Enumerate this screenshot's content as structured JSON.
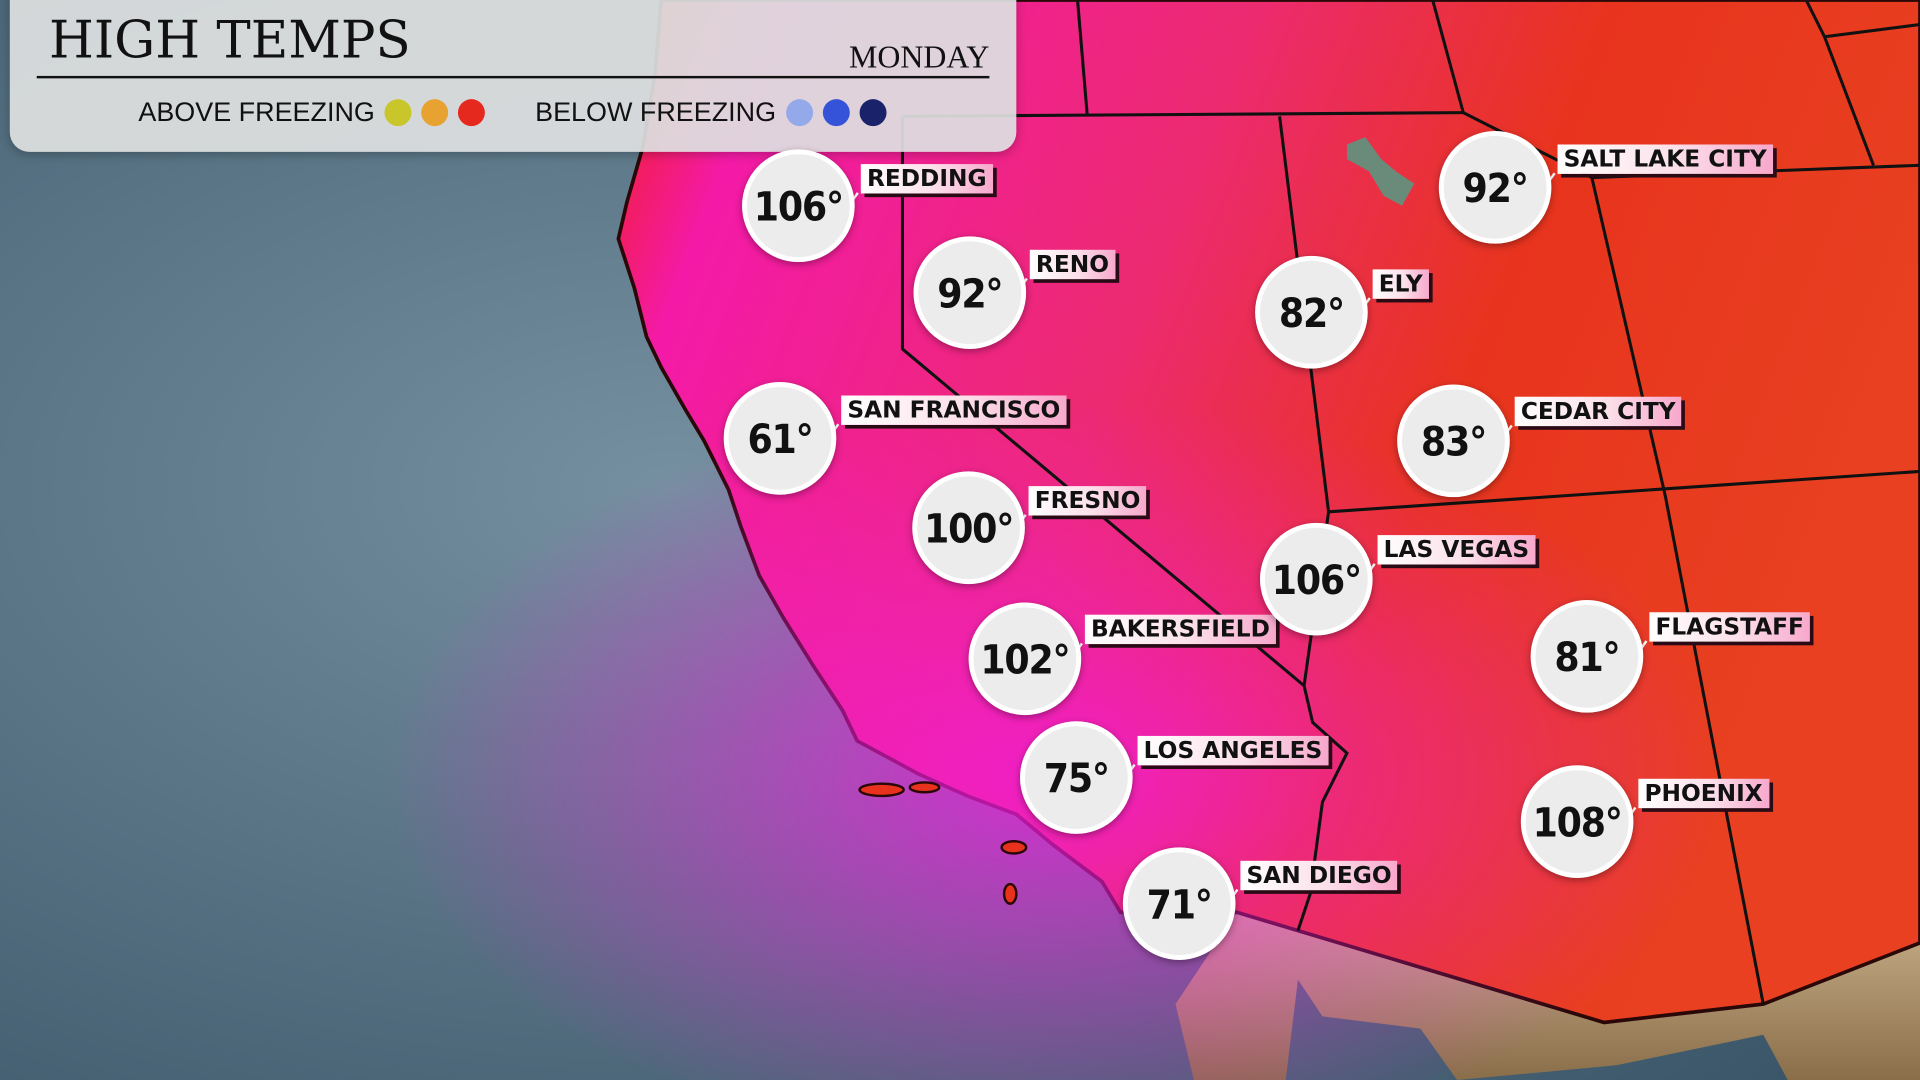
{
  "header": {
    "title": "HIGH TEMPS",
    "day": "MONDAY"
  },
  "legend": {
    "above_label": "ABOVE FREEZING",
    "above_colors": [
      "#c8c62a",
      "#e8a232",
      "#e6291e"
    ],
    "below_label": "BELOW FREEZING",
    "below_colors": [
      "#93a9ea",
      "#3553d8",
      "#1a226a"
    ]
  },
  "colors": {
    "ocean": "#5f7f92",
    "land_hot": "#f01aa8",
    "land_warm": "#e8321e",
    "mexico": "#b89a70"
  },
  "cities": [
    {
      "name": "REDDING",
      "temp": "106°"
    },
    {
      "name": "RENO",
      "temp": "92°"
    },
    {
      "name": "SAN FRANCISCO",
      "temp": "61°"
    },
    {
      "name": "FRESNO",
      "temp": "100°"
    },
    {
      "name": "BAKERSFIELD",
      "temp": "102°"
    },
    {
      "name": "LOS ANGELES",
      "temp": "75°"
    },
    {
      "name": "SAN DIEGO",
      "temp": "71°"
    },
    {
      "name": "ELY",
      "temp": "82°"
    },
    {
      "name": "SALT LAKE CITY",
      "temp": "92°"
    },
    {
      "name": "CEDAR CITY",
      "temp": "83°"
    },
    {
      "name": "LAS VEGAS",
      "temp": "106°"
    },
    {
      "name": "FLAGSTAFF",
      "temp": "81°"
    },
    {
      "name": "PHOENIX",
      "temp": "108°"
    }
  ]
}
